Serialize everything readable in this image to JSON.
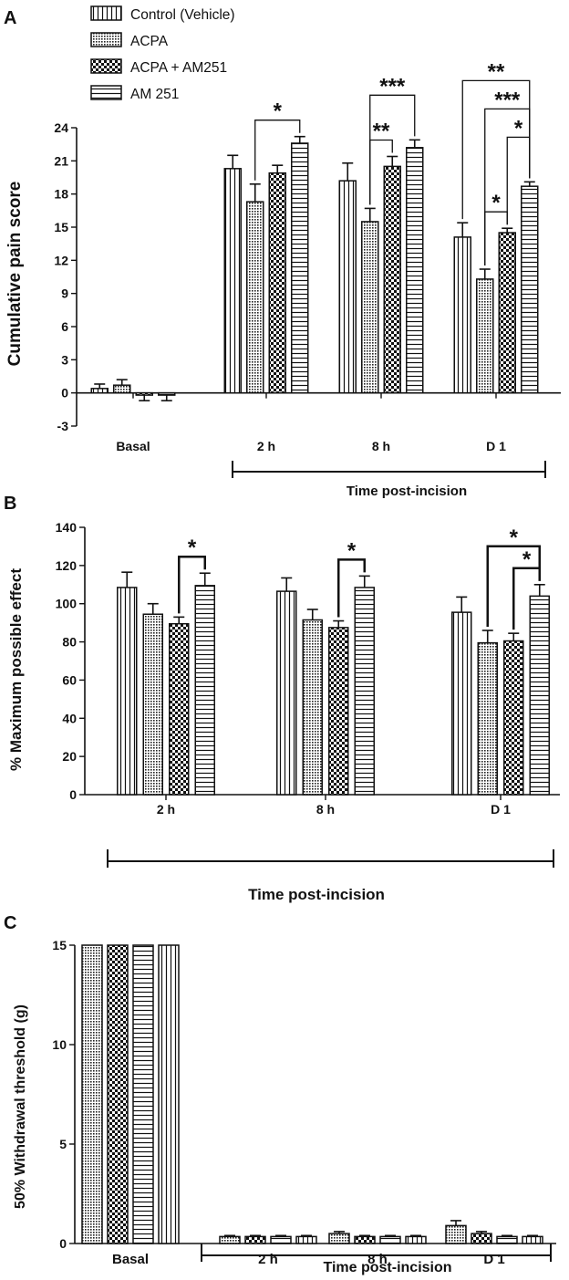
{
  "legend": [
    {
      "name": "Control (Vehicle)",
      "pattern": "vstripe"
    },
    {
      "name": "ACPA",
      "pattern": "dots"
    },
    {
      "name": "ACPA + AM251",
      "pattern": "checker"
    },
    {
      "name": "AM 251",
      "pattern": "hstripe"
    }
  ],
  "chart_data": [
    {
      "type": "bar",
      "panel": "A",
      "categories": [
        "Basal",
        "2 h",
        "8 h",
        "D 1"
      ],
      "ylabel": "Cumulative pain score",
      "xlabel": "Time post-incision",
      "ylim": [
        -3,
        24
      ],
      "yticks": [
        -3,
        0,
        3,
        6,
        9,
        12,
        15,
        18,
        21,
        24
      ],
      "series": [
        {
          "name": "Control (Vehicle)",
          "values": [
            0.4,
            20.3,
            19.2,
            14.1
          ],
          "errors": [
            0.4,
            1.2,
            1.6,
            1.3
          ]
        },
        {
          "name": "ACPA",
          "values": [
            0.7,
            17.3,
            15.5,
            10.3
          ],
          "errors": [
            0.5,
            1.6,
            1.2,
            0.9
          ]
        },
        {
          "name": "ACPA + AM251",
          "values": [
            -0.2,
            19.9,
            20.5,
            14.5
          ],
          "errors": [
            0.5,
            0.7,
            0.9,
            0.4
          ]
        },
        {
          "name": "AM 251",
          "values": [
            -0.2,
            22.6,
            22.2,
            18.7
          ],
          "errors": [
            0.5,
            0.6,
            0.7,
            0.4
          ]
        }
      ],
      "significance": [
        {
          "category": "2 h",
          "from": "ACPA",
          "to": "AM 251",
          "label": "*",
          "level": 1
        },
        {
          "category": "8 h",
          "from": "ACPA",
          "to": "ACPA + AM251",
          "label": "**",
          "level": 1
        },
        {
          "category": "8 h",
          "from": "ACPA",
          "to": "AM 251",
          "label": "***",
          "level": 2
        },
        {
          "category": "D 1",
          "from": "ACPA",
          "to": "ACPA + AM251",
          "label": "*",
          "level": 1
        },
        {
          "category": "D 1",
          "from": "ACPA + AM251",
          "to": "AM 251",
          "label": "*",
          "level": 2
        },
        {
          "category": "D 1",
          "from": "ACPA",
          "to": "AM 251",
          "label": "***",
          "level": 3
        },
        {
          "category": "D 1",
          "from": "Control (Vehicle)",
          "to": "AM 251",
          "label": "**",
          "level": 4
        }
      ]
    },
    {
      "type": "bar",
      "panel": "B",
      "categories": [
        "2 h",
        "8 h",
        "D 1"
      ],
      "ylabel": "% Maximum possible effect",
      "xlabel": "Time post-incision",
      "ylim": [
        0,
        140
      ],
      "yticks": [
        0,
        20,
        40,
        60,
        80,
        100,
        120,
        140
      ],
      "series": [
        {
          "name": "Control (Vehicle)",
          "values": [
            108.5,
            106.5,
            95.5
          ],
          "errors": [
            8,
            7,
            8
          ]
        },
        {
          "name": "ACPA",
          "values": [
            94.5,
            91.5,
            79.5
          ],
          "errors": [
            5.5,
            5.5,
            6.5
          ]
        },
        {
          "name": "ACPA + AM251",
          "values": [
            89.5,
            87.5,
            80.5
          ],
          "errors": [
            3.5,
            3.5,
            4
          ]
        },
        {
          "name": "AM 251",
          "values": [
            109.5,
            108.5,
            104
          ],
          "errors": [
            6.5,
            6,
            6
          ]
        }
      ],
      "significance": [
        {
          "category": "2 h",
          "from": "ACPA + AM251",
          "to": "AM 251",
          "label": "*",
          "level": 1
        },
        {
          "category": "8 h",
          "from": "ACPA + AM251",
          "to": "AM 251",
          "label": "*",
          "level": 1
        },
        {
          "category": "D 1",
          "from": "ACPA + AM251",
          "to": "AM 251",
          "label": "*",
          "level": 1
        },
        {
          "category": "D 1",
          "from": "ACPA",
          "to": "AM 251",
          "label": "*",
          "level": 2
        }
      ]
    },
    {
      "type": "bar",
      "panel": "C",
      "categories": [
        "Basal",
        "2 h",
        "8 h",
        "D 1"
      ],
      "ylabel": "50% Withdrawal threshold (g)",
      "xlabel": "Time post-incision",
      "ylim": [
        0,
        15
      ],
      "yticks": [
        0,
        5,
        10,
        15
      ],
      "series": [
        {
          "name": "ACPA",
          "values": [
            15,
            0.35,
            0.5,
            0.9
          ],
          "errors": [
            0,
            0.05,
            0.1,
            0.25
          ]
        },
        {
          "name": "ACPA + AM251",
          "values": [
            15,
            0.35,
            0.35,
            0.5
          ],
          "errors": [
            0,
            0.05,
            0.05,
            0.1
          ]
        },
        {
          "name": "AM 251",
          "values": [
            15,
            0.35,
            0.35,
            0.35
          ],
          "errors": [
            0,
            0.05,
            0.05,
            0.05
          ]
        },
        {
          "name": "Control (Vehicle)",
          "values": [
            15,
            0.35,
            0.35,
            0.35
          ],
          "errors": [
            0,
            0.05,
            0.05,
            0.05
          ]
        }
      ],
      "significance": []
    }
  ]
}
